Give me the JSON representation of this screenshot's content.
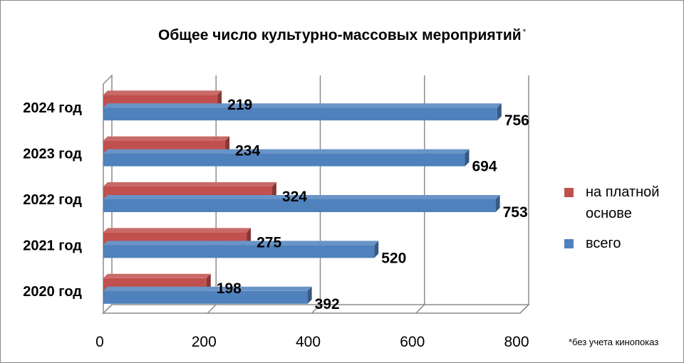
{
  "chart_data": {
    "type": "bar",
    "orientation": "horizontal",
    "title": "Общее число культурно-массовых мероприятий",
    "title_mark": "*",
    "categories": [
      "2020 год",
      "2021 год",
      "2022 год",
      "2023 год",
      "2024 год"
    ],
    "series": [
      {
        "name": "на платной основе",
        "color": "#C0504D",
        "values": [
          198,
          275,
          324,
          234,
          219
        ]
      },
      {
        "name": "всего",
        "color": "#4F81BD",
        "values": [
          392,
          520,
          753,
          694,
          756
        ]
      }
    ],
    "xlim": [
      0,
      800
    ],
    "xticks": [
      "0",
      "200",
      "400",
      "600",
      "800"
    ],
    "grid": true,
    "legend_position": "right",
    "footnote": "*без учета кинопоказ"
  }
}
